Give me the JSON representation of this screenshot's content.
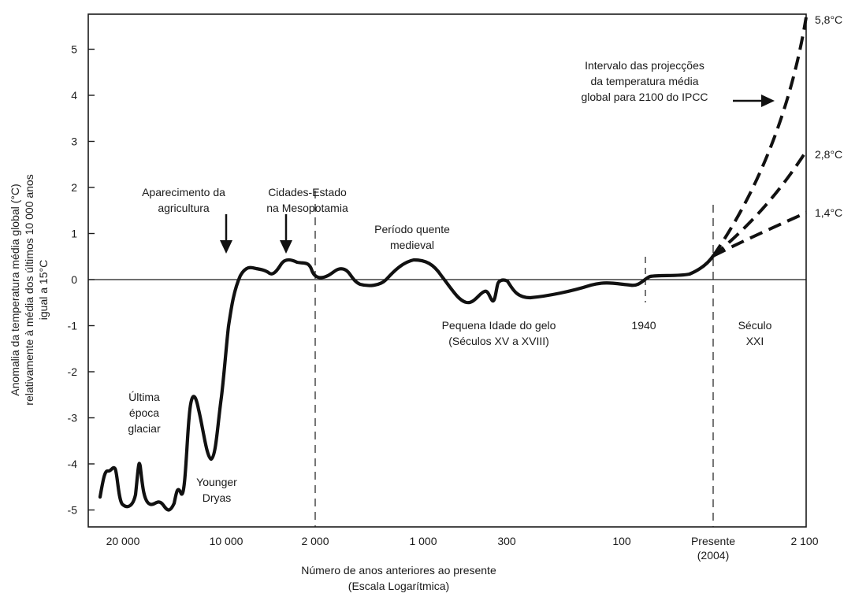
{
  "chart_data": {
    "type": "line",
    "title": "",
    "xlabel": [
      "Número de anos anteriores ao presente",
      "(Escala Logarítmica)"
    ],
    "ylabel": [
      "Anomalia da temperatura média global (°C)",
      "relativamente à média dos últimos 10 000 anos",
      "igual a 15°C"
    ],
    "ylim": [
      -5.2,
      5.7
    ],
    "yticks": [
      5,
      4,
      3,
      2,
      1,
      0,
      -1,
      -2,
      -3,
      -4,
      -5
    ],
    "ytick_labels": [
      "5",
      "4",
      "3",
      "2",
      "1",
      "0",
      "-1",
      "-2",
      "-3",
      "-4",
      "-5"
    ],
    "xtick_labels": [
      "20 000",
      "10 000",
      "2 000",
      "1 000",
      "300",
      "100",
      "Presente",
      "2 100"
    ],
    "xtick_sublabel": "(2004)",
    "grid": false,
    "legend": "none",
    "series": [
      {
        "style": "solid",
        "x_years_before_present": [
          21000,
          20500,
          20000,
          19000,
          18500,
          18000,
          17500,
          17000,
          16500,
          16000,
          15000,
          14500,
          14000,
          13600,
          13200,
          12900,
          12600,
          12300,
          12000,
          11800,
          11500,
          11200,
          11000,
          10800,
          10500,
          10200,
          10000,
          9500,
          9000,
          8500,
          8000,
          7000,
          6000,
          5000,
          4500,
          4000,
          3500,
          3000,
          2500,
          2000,
          1800,
          1600,
          1400,
          1200,
          1100,
          1000,
          900,
          800,
          700,
          600,
          500,
          450,
          400,
          350,
          300,
          250,
          200,
          150,
          100,
          70,
          60,
          30,
          10,
          0
        ],
        "y": [
          -4.8,
          -4.2,
          -4.1,
          -4.9,
          -5.0,
          -4.0,
          -4.8,
          -4.9,
          -4.8,
          -5.0,
          -5.1,
          -4.6,
          -4.7,
          -3.5,
          -2.6,
          -2.5,
          -2.9,
          -3.7,
          -4.0,
          -3.5,
          -2.8,
          -1.9,
          -1.2,
          -0.8,
          -0.2,
          0.1,
          0.25,
          0.3,
          0.2,
          0.3,
          0.4,
          0.4,
          0.4,
          0.3,
          0.0,
          -0.05,
          0.1,
          0.2,
          -0.05,
          -0.1,
          -0.15,
          -0.1,
          0.2,
          0.35,
          0.35,
          0.3,
          0.1,
          -0.2,
          -0.5,
          -0.4,
          -0.2,
          -0.5,
          -0.1,
          -0.1,
          -0.3,
          -0.45,
          -0.4,
          -0.3,
          -0.15,
          -0.1,
          0.05,
          0.05,
          0.15,
          0.5
        ]
      }
    ],
    "projections": [
      {
        "label": "5,8°C",
        "end_value": 5.8
      },
      {
        "label": "2,8°C",
        "end_value": 2.8
      },
      {
        "label": "1,4°C",
        "end_value": 1.4
      }
    ],
    "markers": [
      {
        "label": "1940",
        "line": "short-dashed"
      },
      {
        "label": "2 000",
        "line": "dashed"
      },
      {
        "label": "Presente",
        "line": "dashed"
      }
    ],
    "annotations": {
      "ultima_epoca": [
        "Última",
        "época",
        "glaciar"
      ],
      "younger_dryas": [
        "Younger",
        "Dryas"
      ],
      "agricultura": [
        "Aparecimento da",
        "agricultura"
      ],
      "cidades": [
        "Cidades-Estado",
        "na Mesopotamia"
      ],
      "periodo_quente": [
        "Período quente",
        "medieval"
      ],
      "pequena_idade": [
        "Pequena Idade do gelo",
        "(Séculos XV a XVIII)"
      ],
      "seculo_xxi": [
        "Século",
        "XXI"
      ],
      "ipcc": [
        "Intervalo das projecções",
        "da temperatura média",
        "global para 2100 do IPCC"
      ]
    }
  }
}
